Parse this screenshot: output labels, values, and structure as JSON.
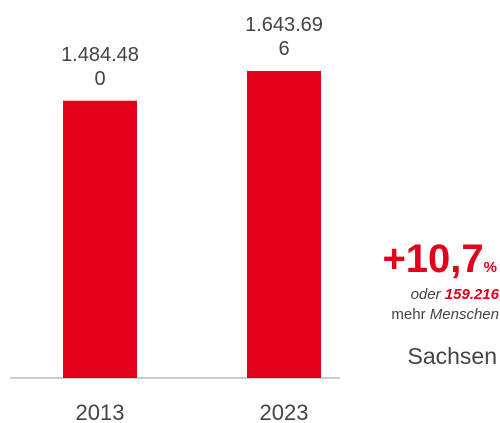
{
  "chart_data": {
    "type": "bar",
    "categories": [
      "2013",
      "2023"
    ],
    "values": [
      1484480,
      1643696
    ],
    "value_labels": [
      "1.484.480",
      "1.643.696"
    ],
    "color": "#e2001a",
    "annotations": {
      "change": "+10,7",
      "change_unit": "%",
      "prefix": "oder",
      "difference": "159.216",
      "suffix_1": "mehr",
      "suffix_2": "Menschen",
      "region": "Sachsen"
    }
  }
}
